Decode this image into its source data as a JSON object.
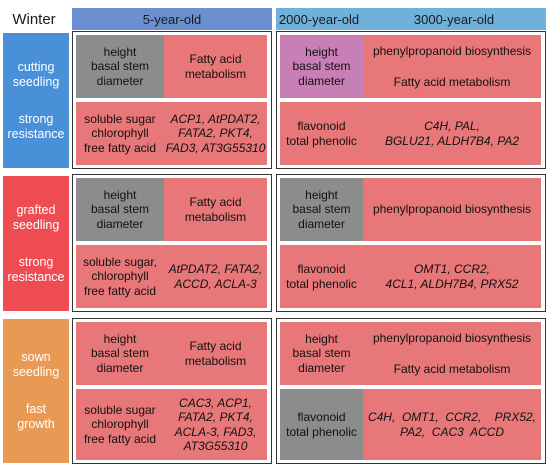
{
  "corner_label": "Winter",
  "columns": [
    "5-year-old",
    "2000-year-old",
    "3000-year-old"
  ],
  "colors": {
    "header": "#6b8fd0",
    "header_right": "#6fb1da",
    "cutting": "#4a90d9",
    "grafted": "#ef4b52",
    "sown": "#e89a55",
    "red_cell": "#e8777a",
    "gray_cell": "#8c8c8c",
    "purple_cell": "#c87fb5"
  },
  "rows": [
    {
      "label_line1": "cutting",
      "label_line2": "seedling",
      "label_line3": "strong",
      "label_line4": "resistance",
      "five_top_left": [
        "height",
        "basal stem",
        "diameter"
      ],
      "five_top_right": [
        "Fatty acid",
        "metabolism"
      ],
      "five_bottom_left": [
        "soluble sugar",
        "chlorophyll",
        "free fatty acid"
      ],
      "five_bottom_right": [
        "ACP1, AtPDAT2,",
        "FATA2, PKT4,",
        "FAD3, AT3G55310"
      ],
      "old_top_left": [
        "height",
        "basal stem",
        "diameter"
      ],
      "old_top_right": [
        "phenylpropanoid biosynthesis",
        "Fatty acid metabolism"
      ],
      "old_bottom_left": [
        "flavonoid",
        "total phenolic"
      ],
      "old_bottom_right": [
        "C4H, PAL,",
        "BGLU21, ALDH7B4, PA2"
      ]
    },
    {
      "label_line1": "grafted",
      "label_line2": "seedling",
      "label_line3": "strong",
      "label_line4": "resistance",
      "five_top_left": [
        "height",
        "basal stem",
        "diameter"
      ],
      "five_top_right": [
        "Fatty acid",
        "metabolism"
      ],
      "five_bottom_left": [
        "soluble sugar,",
        "chlorophyll",
        "free fatty acid"
      ],
      "five_bottom_right": [
        "AtPDAT2, FATA2,",
        "ACCD, ACLA-3"
      ],
      "old_top_left": [
        "height",
        "basal stem",
        "diameter"
      ],
      "old_top_right": [
        "phenylpropanoid biosynthesis"
      ],
      "old_bottom_left": [
        "flavonoid",
        "total phenolic"
      ],
      "old_bottom_right": [
        "OMT1, CCR2,",
        "4CL1,  ALDH7B4, PRX52"
      ]
    },
    {
      "label_line1": "sown",
      "label_line2": "seedling",
      "label_line3": "fast",
      "label_line4": "growth",
      "five_top_left": [
        "height",
        "basal stem",
        "diameter"
      ],
      "five_top_right": [
        "Fatty acid",
        "metabolism"
      ],
      "five_bottom_left": [
        "soluble sugar",
        "chlorophyll",
        "free fatty acid"
      ],
      "five_bottom_right": [
        "CAC3, ACP1,",
        "FATA2, PKT4,",
        "ACLA-3,  FAD3,",
        "AT3G55310"
      ],
      "old_top_left": [
        "height",
        "basal stem",
        "diameter"
      ],
      "old_top_right": [
        "phenylpropanoid biosynthesis",
        "Fatty acid metabolism"
      ],
      "old_bottom_left": [
        "flavonoid",
        "total phenolic"
      ],
      "old_bottom_right": [
        "C4H,  OMT1,  CCR2,    PRX52,",
        "PA2,  CAC3  ACCD"
      ]
    }
  ]
}
